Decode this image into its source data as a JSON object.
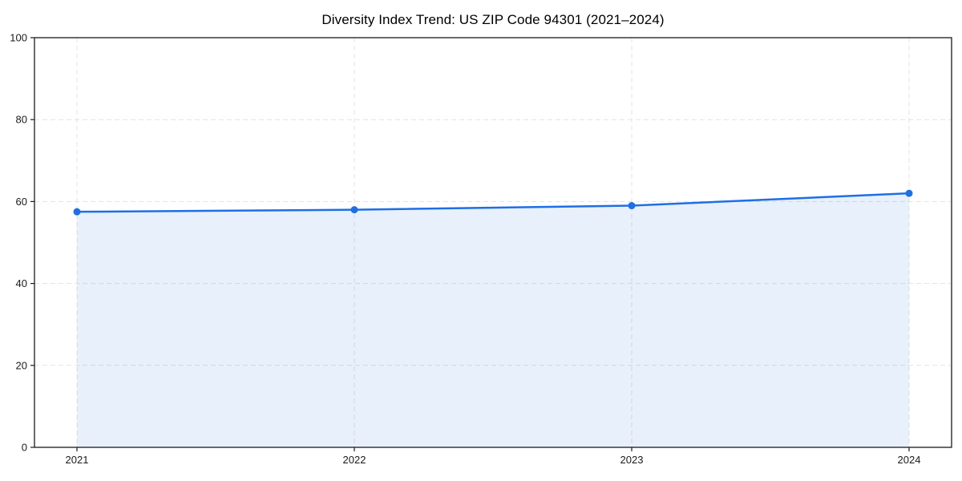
{
  "figure": {
    "background": "#ffffff"
  },
  "chart_data": {
    "type": "line",
    "title": "Diversity Index Trend: US ZIP Code 94301 (2021–2024)",
    "x": [
      "2021",
      "2022",
      "2023",
      "2024"
    ],
    "series": [
      {
        "name": "Diversity Index",
        "values": [
          57.5,
          58,
          59,
          62
        ]
      }
    ],
    "xlabel": "",
    "ylabel": "",
    "ylim": [
      0,
      100
    ],
    "yticks": [
      0,
      20,
      40,
      60,
      80,
      100
    ],
    "grid": true,
    "grid_style": "dashed",
    "area_fill": true,
    "legend": "none",
    "markers": true,
    "colors": {
      "line": "#1f6fe4",
      "marker": "#1f6fe4",
      "area_fill": "rgba(31,111,228,0.10)",
      "grid": "#e3e3e3",
      "axis": "#1a1a1a",
      "tick_label": "#1a1a1a",
      "title": "#000000",
      "background": "#ffffff"
    }
  }
}
